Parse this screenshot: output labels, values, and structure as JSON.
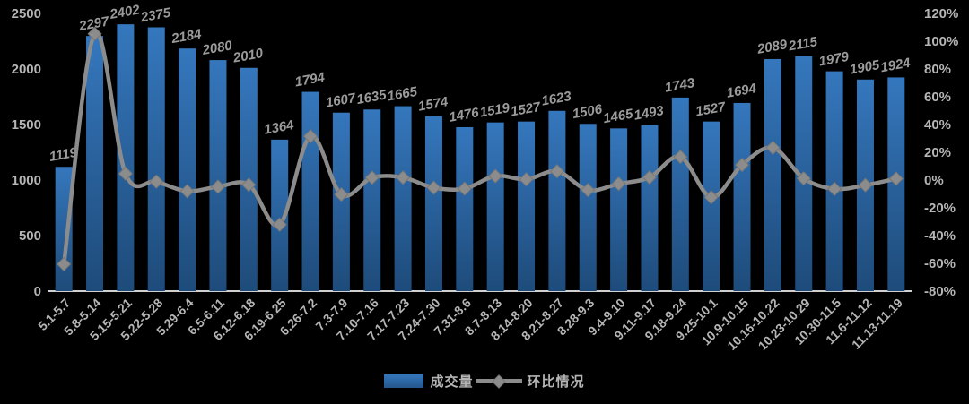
{
  "chart_data": {
    "type": "bar",
    "subtype": "combo-bar-line",
    "categories": [
      "5.1-5.7",
      "5.8-5.14",
      "5.15-5.21",
      "5.22-5.28",
      "5.29-6.4",
      "6.5-6.11",
      "6.12-6.18",
      "6.19-6.25",
      "6.26-7.2",
      "7.3-7.9",
      "7.10-7.16",
      "7.17-7.23",
      "7.24-7.30",
      "7.31-8.6",
      "8.7-8.13",
      "8.14-8.20",
      "8.21-8.27",
      "8.28-9.3",
      "9.4-9.10",
      "9.11-9.17",
      "9.18-9.24",
      "9.25-10.1",
      "10.9-10.15",
      "10.16-10.22",
      "10.23-10.29",
      "10.30-11.5",
      "11.6-11.12",
      "11.13-11.19"
    ],
    "series": [
      {
        "name": "成交量",
        "type": "bar",
        "values": [
          1119,
          2297,
          2402,
          2375,
          2184,
          2080,
          2010,
          1364,
          1794,
          1607,
          1635,
          1665,
          1574,
          1476,
          1519,
          1527,
          1623,
          1506,
          1465,
          1493,
          1743,
          1527,
          1694,
          2089,
          2115,
          1979,
          1905,
          1924
        ],
        "labels": [
          "1119",
          "2297",
          "2402",
          "2375",
          "2184",
          "2080",
          "2010",
          "1364",
          "1794",
          "1607",
          "1635",
          "1665",
          "1574",
          "1476",
          "1519",
          "1527",
          "1623",
          "1506",
          "1465",
          "1493",
          "1743",
          "1527",
          "1694",
          "2089",
          "2115",
          "1979",
          "1905",
          "1924"
        ]
      },
      {
        "name": "环比情况",
        "type": "line",
        "unit": "%",
        "values": [
          -60.6,
          105.3,
          4.6,
          -1.1,
          -8.0,
          -4.8,
          -3.4,
          -32.1,
          31.5,
          -10.4,
          1.7,
          1.8,
          -5.5,
          -6.2,
          2.9,
          0.5,
          6.3,
          -7.2,
          -2.7,
          1.9,
          16.7,
          -12.4,
          10.9,
          23.3,
          1.2,
          -6.4,
          -3.7,
          1.0
        ]
      }
    ],
    "axes": {
      "left": {
        "min": 0,
        "max": 2500,
        "step": 500,
        "ticks": [
          "0",
          "500",
          "1000",
          "1500",
          "2000",
          "2500"
        ]
      },
      "right": {
        "min": -80,
        "max": 120,
        "step": 20,
        "ticks": [
          "-80%",
          "-60%",
          "-40%",
          "-20%",
          "0%",
          "20%",
          "40%",
          "60%",
          "80%",
          "100%",
          "120%"
        ]
      }
    },
    "grid": "off",
    "legend_position": "bottom",
    "legend": [
      {
        "label": "成交量",
        "marker": "bar-swatch"
      },
      {
        "label": "环比情况",
        "marker": "line-diamond-swatch"
      }
    ],
    "colors": {
      "background": "#000000",
      "bar_top": "#3577bd",
      "bar_bottom": "#1e4b7a",
      "line": "#8c8c8c",
      "marker_edge": "#777777",
      "data_label": "#9b9b9b",
      "axis_label": "#b5b5b5",
      "baseline": "#d0d0d0"
    }
  }
}
